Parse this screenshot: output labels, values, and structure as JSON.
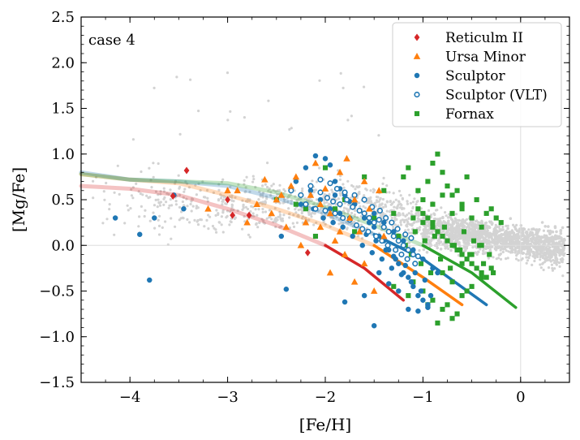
{
  "chart_data": {
    "type": "scatter",
    "annotation": "case 4",
    "xlabel": "[Fe/H]",
    "ylabel": "[Mg/Fe]",
    "xlim": [
      -4.5,
      0.5
    ],
    "ylim": [
      -1.5,
      2.5
    ],
    "x_ticks": [
      -4,
      -3,
      -2,
      -1,
      0
    ],
    "x_tick_labels": [
      "−4",
      "−3",
      "−2",
      "−1",
      "0"
    ],
    "y_ticks": [
      -1.5,
      -1.0,
      -0.5,
      0.0,
      0.5,
      1.0,
      1.5,
      2.0,
      2.5
    ],
    "y_tick_labels": [
      "−1.5",
      "−1.0",
      "−0.5",
      "0.0",
      "0.5",
      "1.0",
      "1.5",
      "2.0",
      "2.5"
    ],
    "reference_lines": {
      "x": 0,
      "y": 0,
      "color": "#dddddd"
    },
    "legend_position": "top-right",
    "background_color": "#d3d3d3",
    "series": [
      {
        "name": "Reticulm II",
        "marker": "diamond",
        "color": "#d62728",
        "x": [
          -3.42,
          -3.56,
          -2.95,
          -2.78,
          -2.18,
          -3.0
        ],
        "y": [
          0.82,
          0.54,
          0.33,
          0.33,
          -0.08,
          0.5
        ]
      },
      {
        "name": "Ursa Minor",
        "marker": "triangle",
        "color": "#ff7f0e",
        "x": [
          -2.9,
          -2.7,
          -2.62,
          -2.55,
          -2.45,
          -2.35,
          -2.3,
          -2.2,
          -2.15,
          -2.1,
          -2.05,
          -2.0,
          -1.95,
          -1.9,
          -1.85,
          -1.8,
          -1.78,
          -1.75,
          -1.7,
          -1.65,
          -1.6,
          -1.55,
          -1.5,
          -1.45,
          -1.4,
          -2.25,
          -2.4,
          -3.2,
          -3.0,
          -2.8,
          -1.85,
          -1.95,
          -2.05,
          -1.6,
          -1.7,
          -2.5
        ],
        "y": [
          0.6,
          0.45,
          0.72,
          0.35,
          0.55,
          0.65,
          0.75,
          0.25,
          0.55,
          0.9,
          0.45,
          0.62,
          0.35,
          0.05,
          0.8,
          -0.1,
          0.95,
          0.3,
          0.5,
          0.15,
          -0.2,
          0.4,
          -0.5,
          0.6,
          0.1,
          0.0,
          0.2,
          0.4,
          0.6,
          0.25,
          0.15,
          -0.3,
          0.2,
          0.7,
          -0.4,
          0.5
        ]
      },
      {
        "name": "Sculptor",
        "marker": "circle",
        "color": "#1f77b4",
        "x": [
          -3.75,
          -3.55,
          -3.45,
          -3.9,
          -4.15,
          -3.8,
          -2.4,
          -2.2,
          -2.1,
          -2.0,
          -1.95,
          -1.9,
          -1.85,
          -1.8,
          -1.75,
          -1.7,
          -1.65,
          -1.6,
          -1.55,
          -1.5,
          -1.45,
          -1.4,
          -1.35,
          -1.3,
          -1.25,
          -1.2,
          -1.15,
          -1.1,
          -1.05,
          -1.0,
          -0.95,
          -2.3,
          -2.15,
          -2.05,
          -1.95,
          -1.85,
          -1.75,
          -1.68,
          -1.58,
          -1.48,
          -1.38,
          -1.28,
          -1.18,
          -1.08,
          -0.98,
          -2.25,
          -2.12,
          -2.02,
          -1.92,
          -1.82,
          -1.72,
          -1.62,
          -1.52,
          -1.42,
          -1.32,
          -1.22,
          -1.12,
          -1.02,
          -0.92,
          -1.9,
          -1.7,
          -1.5,
          -1.4,
          -1.3,
          -1.2,
          -1.1,
          -1.0,
          -0.9,
          -0.85,
          -1.6,
          -1.8,
          -2.45,
          -1.5,
          -1.15,
          -1.05,
          -0.95,
          -1.35,
          -1.25,
          -1.45
        ],
        "y": [
          0.3,
          0.55,
          0.4,
          0.12,
          0.3,
          -0.38,
          -0.48,
          0.85,
          0.98,
          0.95,
          0.88,
          0.7,
          0.62,
          0.55,
          0.48,
          0.45,
          0.38,
          0.3,
          0.25,
          0.2,
          0.1,
          0.05,
          -0.05,
          -0.12,
          -0.2,
          -0.3,
          -0.35,
          -0.45,
          -0.55,
          -0.6,
          -0.65,
          0.7,
          0.6,
          0.5,
          0.4,
          0.35,
          0.3,
          0.22,
          0.12,
          0.05,
          -0.05,
          -0.15,
          -0.22,
          -0.3,
          -0.38,
          0.45,
          0.4,
          0.3,
          0.25,
          0.2,
          0.1,
          0.0,
          -0.08,
          -0.15,
          -0.25,
          -0.32,
          -0.4,
          -0.5,
          -0.55,
          0.55,
          0.45,
          0.35,
          0.25,
          0.15,
          0.05,
          -0.05,
          -0.15,
          -0.25,
          -0.3,
          -0.55,
          -0.62,
          0.1,
          -0.88,
          -0.7,
          -0.72,
          -0.68,
          -0.42,
          -0.5,
          -0.3
        ]
      },
      {
        "name": "Sculptor (VLT)",
        "marker": "open-circle",
        "color": "#1f77b4",
        "x": [
          -2.35,
          -2.25,
          -2.15,
          -2.05,
          -1.98,
          -1.92,
          -1.85,
          -1.78,
          -1.72,
          -1.65,
          -1.6,
          -1.55,
          -1.5,
          -1.45,
          -1.4,
          -1.35,
          -1.3,
          -1.25,
          -1.2,
          -1.15,
          -1.1,
          -1.05,
          -2.2,
          -2.1,
          -2.0,
          -1.9,
          -1.82,
          -1.75,
          -1.68,
          -1.62,
          -1.56,
          -1.48,
          -1.42,
          -1.36,
          -1.28,
          -1.22,
          -1.16,
          -1.08,
          -2.05,
          -1.95,
          -1.88,
          -1.8,
          -1.7,
          -1.6,
          -1.52,
          -1.44,
          -1.38,
          -1.32,
          -1.26,
          -1.18,
          -1.12
        ],
        "y": [
          0.6,
          0.55,
          0.65,
          0.58,
          0.52,
          0.48,
          0.45,
          0.5,
          0.42,
          0.38,
          0.35,
          0.3,
          0.25,
          0.28,
          0.2,
          0.15,
          0.1,
          0.05,
          0.0,
          -0.05,
          -0.1,
          -0.12,
          0.45,
          0.4,
          0.38,
          0.35,
          0.3,
          0.28,
          0.22,
          0.18,
          0.15,
          0.1,
          0.05,
          0.0,
          -0.05,
          -0.1,
          -0.15,
          -0.2,
          0.72,
          0.68,
          0.62,
          0.58,
          0.55,
          0.5,
          0.42,
          0.38,
          0.3,
          0.25,
          0.18,
          0.12,
          0.08
        ]
      },
      {
        "name": "Fornax",
        "marker": "square",
        "color": "#2ca02c",
        "x": [
          -2.5,
          -2.3,
          -2.1,
          -1.9,
          -1.7,
          -1.5,
          -1.3,
          -1.2,
          -1.15,
          -1.1,
          -1.05,
          -1.0,
          -0.95,
          -0.9,
          -0.85,
          -0.8,
          -0.75,
          -0.7,
          -0.65,
          -0.6,
          -0.55,
          -0.5,
          -0.45,
          -0.4,
          -0.35,
          -0.3,
          -0.25,
          -0.2,
          -1.25,
          -1.18,
          -1.12,
          -1.08,
          -1.02,
          -0.98,
          -0.92,
          -0.88,
          -0.82,
          -0.78,
          -0.72,
          -0.68,
          -0.62,
          -0.58,
          -0.52,
          -0.48,
          -0.42,
          -0.38,
          -0.32,
          -0.28,
          -1.05,
          -1.0,
          -0.95,
          -0.9,
          -0.85,
          -0.8,
          -0.75,
          -0.7,
          -0.65,
          -0.6,
          -0.55,
          -0.5,
          -0.45,
          -0.4,
          -0.35,
          -1.1,
          -1.0,
          -0.9,
          -0.8,
          -0.7,
          -0.6,
          -0.5,
          -0.4,
          -0.3,
          -0.85,
          -0.75,
          -0.65,
          -0.55,
          -0.95,
          -1.15,
          -1.3,
          -1.4,
          -1.6,
          -1.8,
          -2.0,
          -2.2,
          -0.9,
          -0.8,
          -0.7,
          -0.6,
          -1.0,
          -0.9,
          -0.8,
          -0.7,
          -0.6,
          -0.5,
          -0.4
        ],
        "y": [
          0.5,
          0.45,
          0.1,
          0.4,
          0.15,
          0.3,
          0.35,
          0.75,
          0.85,
          0.3,
          0.6,
          0.5,
          0.7,
          0.45,
          1.0,
          0.55,
          0.65,
          0.35,
          0.6,
          0.4,
          0.75,
          0.3,
          0.5,
          0.2,
          0.35,
          0.4,
          0.3,
          0.25,
          0.1,
          0.0,
          -0.1,
          0.15,
          -0.2,
          0.05,
          -0.3,
          0.1,
          -0.15,
          0.2,
          -0.25,
          0.0,
          -0.05,
          0.15,
          -0.1,
          0.05,
          0.0,
          -0.2,
          -0.1,
          -0.3,
          0.4,
          0.25,
          0.3,
          0.2,
          0.15,
          0.1,
          0.05,
          0.0,
          -0.05,
          -0.1,
          -0.15,
          -0.2,
          -0.25,
          -0.3,
          -0.35,
          -0.4,
          -0.5,
          -0.6,
          -0.7,
          -0.8,
          -0.55,
          -0.45,
          -0.35,
          -0.25,
          -0.85,
          -0.65,
          -0.75,
          -0.5,
          -0.65,
          -0.55,
          -0.45,
          0.6,
          0.75,
          0.5,
          0.85,
          0.4,
          0.9,
          0.8,
          0.55,
          0.45,
          0.35,
          0.25,
          -0.3,
          -0.4,
          -0.2,
          -0.1,
          0.0
        ]
      }
    ],
    "model_tracks": [
      {
        "color": "#d62728",
        "x": [
          -4.5,
          -4.0,
          -3.5,
          -3.0,
          -2.5,
          -2.0,
          -1.6,
          -1.2
        ],
        "y": [
          0.65,
          0.62,
          0.55,
          0.4,
          0.22,
          0.0,
          -0.25,
          -0.6
        ]
      },
      {
        "color": "#ff7f0e",
        "x": [
          -4.5,
          -4.0,
          -3.5,
          -3.0,
          -2.5,
          -2.0,
          -1.5,
          -1.0,
          -0.6
        ],
        "y": [
          0.78,
          0.72,
          0.68,
          0.55,
          0.4,
          0.22,
          0.0,
          -0.35,
          -0.65
        ]
      },
      {
        "color": "#1f77b4",
        "x": [
          -4.5,
          -4.0,
          -3.5,
          -3.0,
          -2.5,
          -2.0,
          -1.5,
          -1.0,
          -0.35
        ],
        "y": [
          0.8,
          0.72,
          0.7,
          0.65,
          0.52,
          0.35,
          0.12,
          -0.15,
          -0.65
        ]
      },
      {
        "color": "#2ca02c",
        "x": [
          -4.5,
          -4.0,
          -3.5,
          -3.0,
          -2.5,
          -2.0,
          -1.5,
          -1.0,
          -0.5,
          -0.05
        ],
        "y": [
          0.78,
          0.72,
          0.7,
          0.68,
          0.58,
          0.42,
          0.22,
          0.0,
          -0.3,
          -0.68
        ]
      }
    ]
  }
}
